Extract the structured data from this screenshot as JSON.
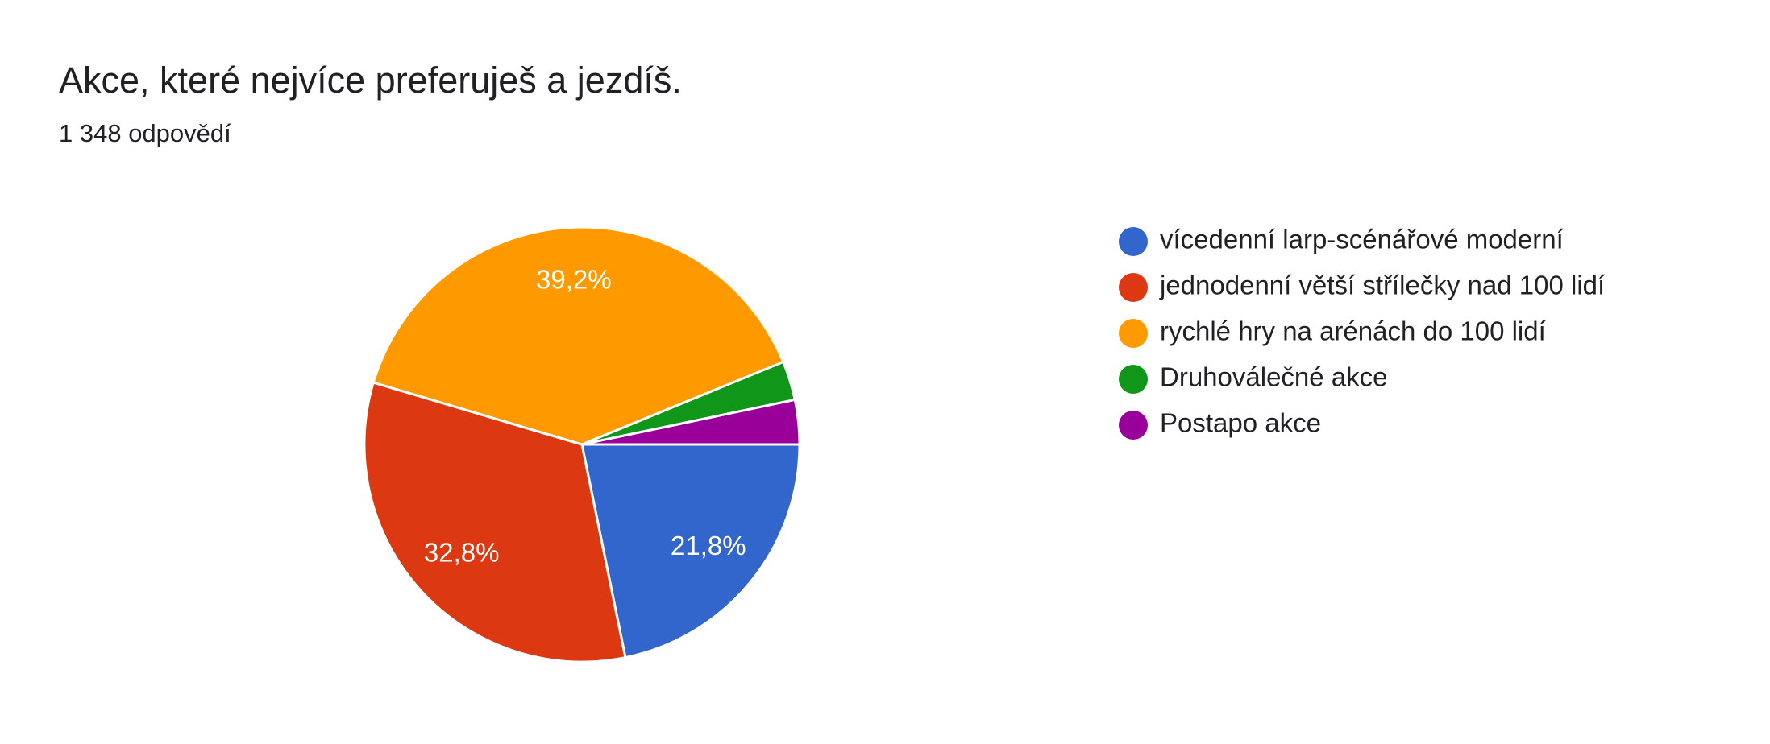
{
  "chart_data": {
    "type": "pie",
    "title": "Akce, které nejvíce preferuješ a jezdíš.",
    "subtitle": "1 348 odpovědí",
    "categories": [
      "vícedenní larp-scénářové moderní",
      "jednodenní větší střílečky nad 100 lidí",
      "rychlé hry na arénách do 100 lidí",
      "Druhoválečné akce",
      "Postapo akce"
    ],
    "values": [
      21.8,
      32.8,
      39.2,
      2.9,
      3.3
    ],
    "value_labels": [
      "21,8%",
      "32,8%",
      "39,2%",
      null,
      null
    ],
    "colors": [
      "#3366cc",
      "#dc3912",
      "#ff9900",
      "#109618",
      "#990099"
    ],
    "legend": "right"
  }
}
